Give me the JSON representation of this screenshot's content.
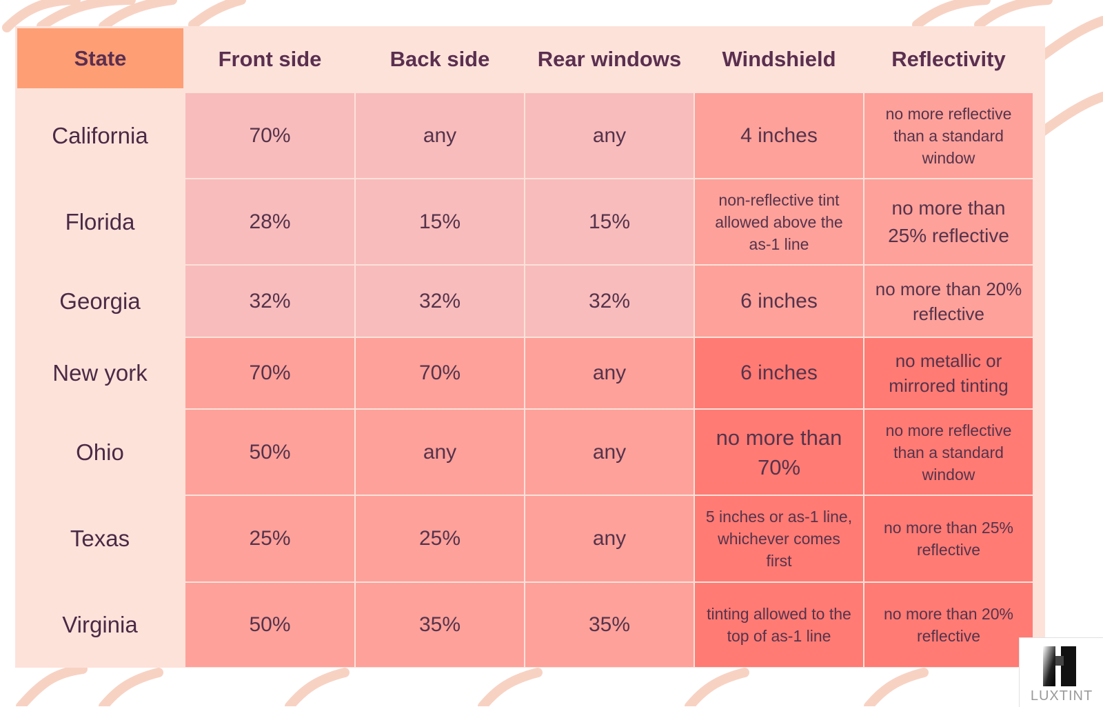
{
  "table": {
    "headers": [
      "State",
      "Front side",
      "Back side",
      "Rear windows",
      "Windshield",
      "Reflectivity"
    ],
    "rows": [
      {
        "state": "California",
        "cells": [
          "70%",
          "any",
          "any",
          "4 inches",
          "no more reflective than a standard window"
        ]
      },
      {
        "state": "Florida",
        "cells": [
          "28%",
          "15%",
          "15%",
          "non-reflective tint allowed above the as-1 line",
          "no more than 25% reflective"
        ]
      },
      {
        "state": "Georgia",
        "cells": [
          "32%",
          "32%",
          "32%",
          "6 inches",
          "no more than 20% reflective"
        ]
      },
      {
        "state": "New york",
        "cells": [
          "70%",
          "70%",
          "any",
          "6 inches",
          "no metallic or mirrored tinting"
        ]
      },
      {
        "state": "Ohio",
        "cells": [
          "50%",
          "any",
          "any",
          "no more than 70%",
          "no more reflective than a standard window"
        ]
      },
      {
        "state": "Texas",
        "cells": [
          "25%",
          "25%",
          "any",
          "5 inches or as-1 line, whichever comes first",
          "no more than 25% reflective"
        ]
      },
      {
        "state": "Virginia",
        "cells": [
          "50%",
          "35%",
          "35%",
          "tinting allowed to the top of as-1 line",
          "no more than 20% reflective"
        ]
      }
    ]
  },
  "logo": {
    "text": "LUXTINT"
  },
  "colors": {
    "panel": "#fde2da",
    "state_header": "#fd9e75",
    "pink_light": "#f8bcbc",
    "salmon": "#fda19a",
    "salmon_deep": "#ff7b74",
    "text": "#4a2a3f"
  }
}
